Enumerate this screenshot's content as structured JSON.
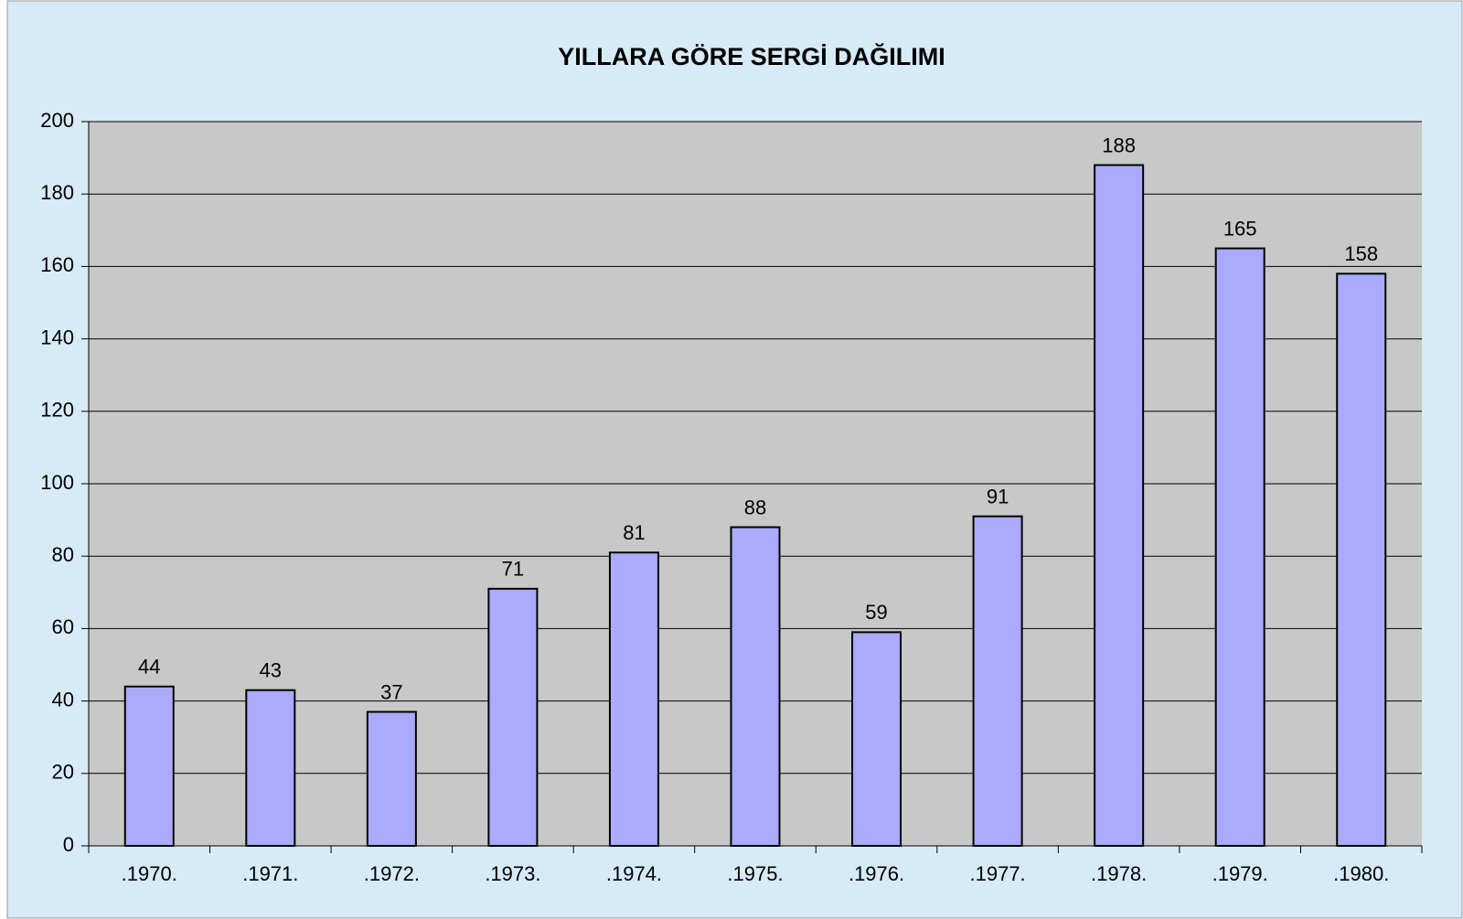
{
  "chart_data": {
    "type": "bar",
    "title": "YILLARA GÖRE SERGİ DAĞILIMI",
    "categories": [
      ".1970.",
      ".1971.",
      ".1972.",
      ".1973.",
      ".1974.",
      ".1975.",
      ".1976.",
      ".1977.",
      ".1978.",
      ".1979.",
      ".1980."
    ],
    "values": [
      44,
      43,
      37,
      71,
      81,
      88,
      59,
      91,
      188,
      165,
      158
    ],
    "color": "#aaaaff",
    "ylim": [
      0,
      200
    ],
    "yticks": [
      0,
      20,
      40,
      60,
      80,
      100,
      120,
      140,
      160,
      180,
      200
    ],
    "grid": true
  }
}
